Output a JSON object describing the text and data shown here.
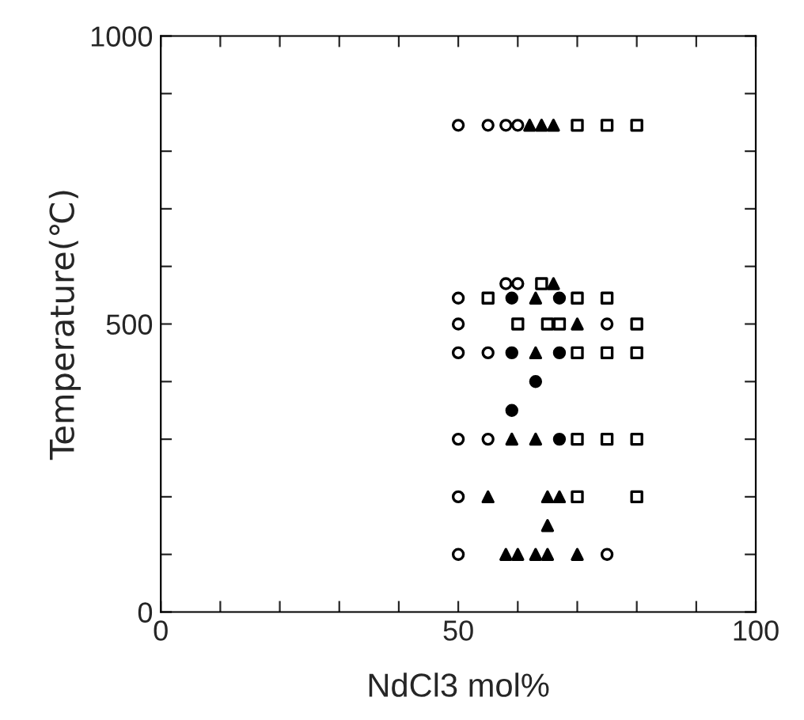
{
  "chart_data": {
    "type": "scatter",
    "xlabel": "NdCl3 mol%",
    "ylabel": "Temperature(℃)",
    "xlim": [
      0,
      100
    ],
    "ylim": [
      0,
      1000
    ],
    "xticks": [
      0,
      {
        "value": 10,
        "label": null
      },
      {
        "value": 20,
        "label": null
      },
      {
        "value": 30,
        "label": null
      },
      {
        "value": 40,
        "label": null
      },
      50,
      {
        "value": 60,
        "label": null
      },
      {
        "value": 70,
        "label": null
      },
      {
        "value": 80,
        "label": null
      },
      {
        "value": 90,
        "label": null
      },
      100
    ],
    "yticks": [
      0,
      {
        "value": 100,
        "label": null
      },
      {
        "value": 200,
        "label": null
      },
      {
        "value": 300,
        "label": null
      },
      {
        "value": 400,
        "label": null
      },
      500,
      {
        "value": 600,
        "label": null
      },
      {
        "value": 700,
        "label": null
      },
      {
        "value": 800,
        "label": null
      },
      {
        "value": 900,
        "label": null
      },
      1000
    ],
    "grid": false,
    "legend": false,
    "series": [
      {
        "color": "#ffffff",
        "marker": "circle",
        "x": [
          50,
          55,
          58,
          60,
          58,
          60,
          50,
          50,
          75,
          50,
          55,
          50,
          55,
          50,
          50,
          75
        ],
        "values": [
          845,
          845,
          845,
          845,
          570,
          570,
          545,
          500,
          500,
          450,
          450,
          300,
          300,
          200,
          100,
          100
        ]
      },
      {
        "color": "#ffffff",
        "marker": "square",
        "x": [
          70,
          75,
          80,
          64,
          55,
          70,
          75,
          60,
          65,
          67,
          80,
          70,
          75,
          80,
          70,
          75,
          80,
          70,
          80
        ],
        "values": [
          845,
          845,
          845,
          570,
          545,
          545,
          545,
          500,
          500,
          500,
          500,
          450,
          450,
          450,
          300,
          300,
          300,
          200,
          200
        ]
      },
      {
        "color": "#000000",
        "marker": "triangle",
        "x": [
          62,
          64,
          66,
          66,
          63,
          70,
          63,
          59,
          63,
          55,
          65,
          67,
          65,
          58,
          60,
          63,
          65,
          70
        ],
        "values": [
          845,
          845,
          845,
          570,
          545,
          500,
          450,
          300,
          300,
          200,
          200,
          200,
          150,
          100,
          100,
          100,
          100,
          100
        ]
      },
      {
        "color": "#000000",
        "marker": "circle",
        "x": [
          59,
          67,
          59,
          67,
          63,
          59,
          67
        ],
        "values": [
          545,
          545,
          450,
          450,
          400,
          350,
          300
        ]
      }
    ]
  }
}
